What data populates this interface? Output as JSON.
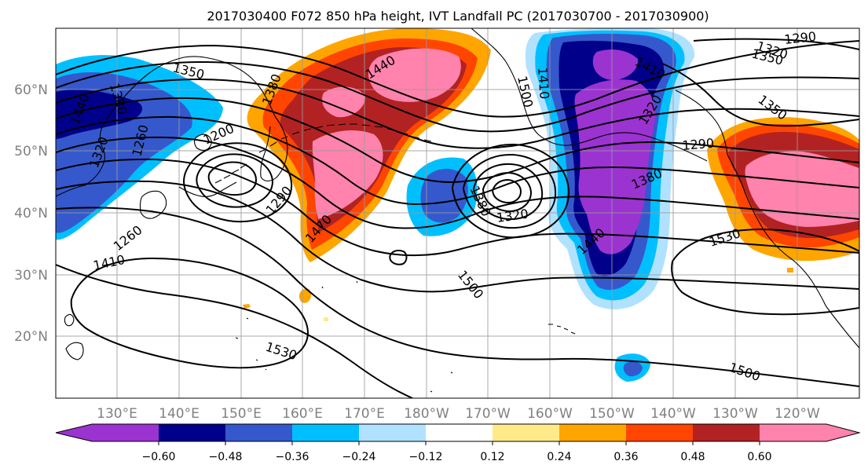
{
  "title": "2017030400 F072 850 hPa height, IVT Landfall PC (2017030700 - 2017030900)",
  "map": {
    "lat_labels": [
      "60°N",
      "50°N",
      "40°N",
      "30°N",
      "20°N"
    ],
    "lon_labels": [
      "130°E",
      "140°E",
      "150°E",
      "160°E",
      "170°E",
      "180°W",
      "170°W",
      "160°W",
      "150°W",
      "140°W",
      "130°W",
      "120°W"
    ],
    "lat_range_deg": [
      10,
      70
    ],
    "lon_range_deg": [
      122,
      252
    ],
    "contour_labels": [
      "1350",
      "1380",
      "1440",
      "1410",
      "1320",
      "1260",
      "1200",
      "1380",
      "1290",
      "1470",
      "1500",
      "1440",
      "1410",
      "1320",
      "1380",
      "1290",
      "1350",
      "1320",
      "1290",
      "1530",
      "1500",
      "1530",
      "1500",
      "1380",
      "1440",
      "1320",
      "1350",
      "1260",
      "1410"
    ],
    "colors": {
      "grid": "#9a9a9a",
      "contours": "#000000",
      "coastline": "#000000"
    }
  },
  "colorbar": {
    "tick_labels": [
      "−0.60",
      "−0.48",
      "−0.36",
      "−0.24",
      "−0.12",
      "0.12",
      "0.24",
      "0.36",
      "0.48",
      "0.60"
    ],
    "colors": [
      "#9b33d1",
      "#00008b",
      "#3559cc",
      "#00bfff",
      "#b0e2ff",
      "#ffffff",
      "#ffea8a",
      "#ffa500",
      "#ff4500",
      "#b22222",
      "#ff83ac"
    ]
  }
}
